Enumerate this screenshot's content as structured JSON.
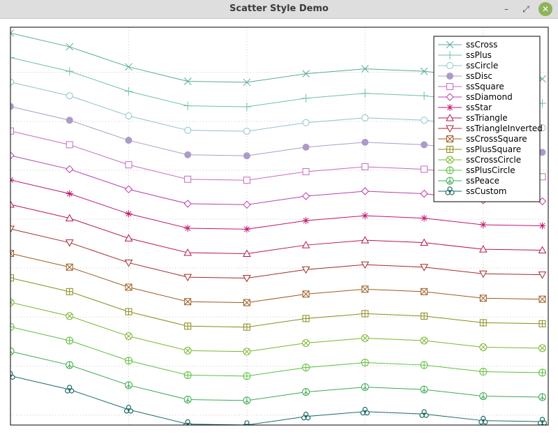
{
  "window": {
    "title": "Scatter Style Demo",
    "minimize_glyph": "–",
    "maximize_glyph": "⤢",
    "close_glyph": "✕"
  },
  "chart_data": {
    "type": "line",
    "title": "",
    "xlabel": "",
    "ylabel": "",
    "grid": true,
    "x_ticks_visible": false,
    "y_ticks_visible": false,
    "legend_placement": "top-right",
    "x": [
      0,
      1,
      2,
      3,
      4,
      5,
      6,
      7,
      8,
      9
    ],
    "series": [
      {
        "name": "ssCross",
        "color": "#5aaa9c",
        "style": "cross",
        "values": [
          15.6,
          15.04,
          14.22,
          13.63,
          13.59,
          13.94,
          14.14,
          14.04,
          13.77,
          13.73
        ]
      },
      {
        "name": "ssPlus",
        "color": "#6fbfaa",
        "style": "plus",
        "values": [
          14.6,
          14.04,
          13.22,
          12.63,
          12.59,
          12.94,
          13.14,
          13.04,
          12.77,
          12.73
        ]
      },
      {
        "name": "ssCircle",
        "color": "#8ec3c7",
        "style": "circle",
        "values": [
          13.6,
          13.04,
          12.22,
          11.63,
          11.59,
          11.94,
          12.14,
          12.04,
          11.77,
          11.73
        ]
      },
      {
        "name": "ssDisc",
        "color": "#ac9bc8",
        "style": "disc",
        "values": [
          12.6,
          12.04,
          11.22,
          10.63,
          10.59,
          10.94,
          11.14,
          11.04,
          10.77,
          10.73
        ]
      },
      {
        "name": "ssSquare",
        "color": "#c56bc0",
        "style": "square",
        "values": [
          11.6,
          11.04,
          10.22,
          9.63,
          9.59,
          9.94,
          10.14,
          10.04,
          9.77,
          9.73
        ]
      },
      {
        "name": "ssDiamond",
        "color": "#b83fa8",
        "style": "diamond",
        "values": [
          10.6,
          10.04,
          9.22,
          8.63,
          8.59,
          8.94,
          9.14,
          9.04,
          8.77,
          8.73
        ]
      },
      {
        "name": "ssStar",
        "color": "#c0166e",
        "style": "star",
        "values": [
          9.6,
          9.04,
          8.22,
          7.63,
          7.59,
          7.94,
          8.14,
          8.04,
          7.77,
          7.73
        ]
      },
      {
        "name": "ssTriangle",
        "color": "#b81650",
        "style": "triangle",
        "values": [
          8.6,
          8.04,
          7.22,
          6.63,
          6.59,
          6.94,
          7.14,
          7.04,
          6.77,
          6.73
        ]
      },
      {
        "name": "ssTriangleInverted",
        "color": "#a52a2a",
        "style": "triangle-inverted",
        "values": [
          7.6,
          7.04,
          6.22,
          5.63,
          5.59,
          5.94,
          6.14,
          6.04,
          5.77,
          5.73
        ]
      },
      {
        "name": "ssCrossSquare",
        "color": "#9b5a1e",
        "style": "cross-square",
        "values": [
          6.6,
          6.04,
          5.22,
          4.63,
          4.59,
          4.94,
          5.14,
          5.04,
          4.77,
          4.73
        ]
      },
      {
        "name": "ssPlusSquare",
        "color": "#8a8a1a",
        "style": "plus-square",
        "values": [
          5.6,
          5.04,
          4.22,
          3.63,
          3.59,
          3.94,
          4.14,
          4.04,
          3.77,
          3.73
        ]
      },
      {
        "name": "ssCrossCircle",
        "color": "#7ab62e",
        "style": "cross-circle",
        "values": [
          4.6,
          4.04,
          3.22,
          2.63,
          2.59,
          2.94,
          3.14,
          3.04,
          2.77,
          2.73
        ]
      },
      {
        "name": "ssPlusCircle",
        "color": "#5cbf3a",
        "style": "plus-circle",
        "values": [
          3.6,
          3.04,
          2.22,
          1.63,
          1.59,
          1.94,
          2.14,
          2.04,
          1.77,
          1.73
        ]
      },
      {
        "name": "ssPeace",
        "color": "#3aaa50",
        "style": "peace",
        "values": [
          2.6,
          2.04,
          1.22,
          0.63,
          0.59,
          0.94,
          1.14,
          1.04,
          0.77,
          0.73
        ]
      },
      {
        "name": "ssCustom",
        "color": "#1a6a66",
        "style": "custom",
        "values": [
          1.6,
          1.04,
          0.22,
          -0.37,
          -0.41,
          -0.06,
          0.14,
          0.04,
          -0.23,
          -0.27
        ]
      }
    ],
    "xlim": [
      0,
      9.1
    ],
    "ylim": [
      -0.41,
      15.84
    ]
  }
}
